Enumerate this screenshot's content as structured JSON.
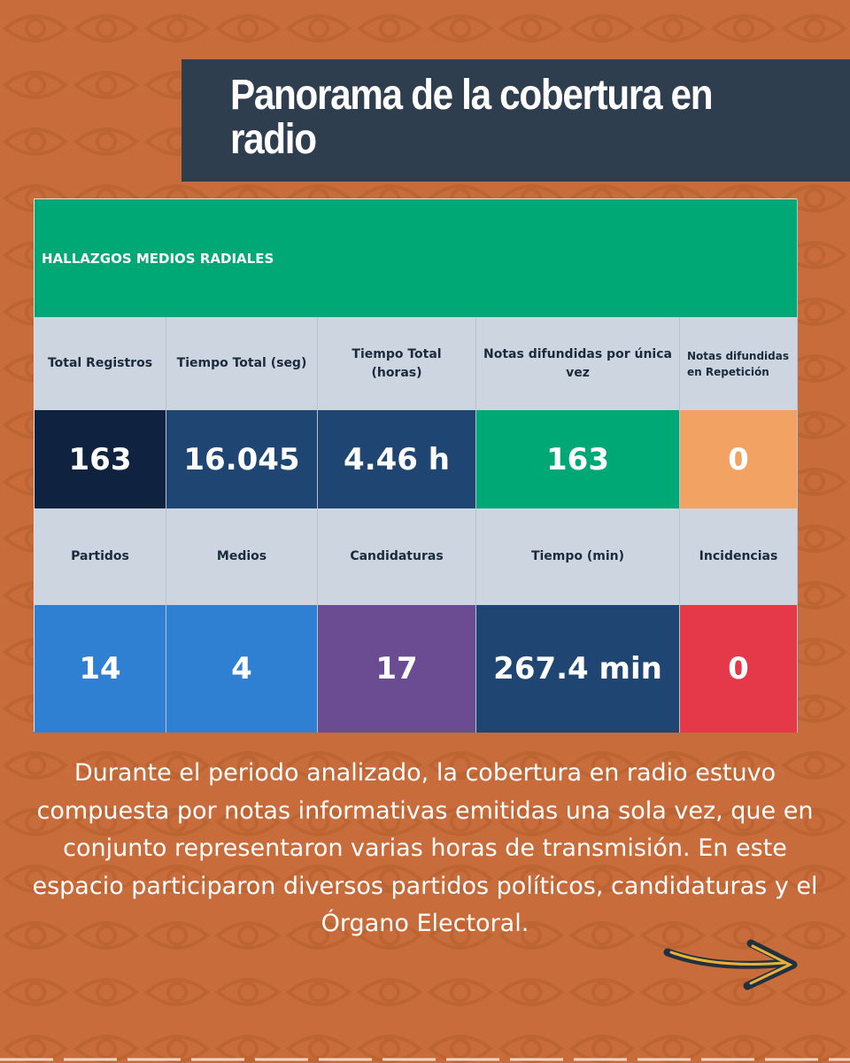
{
  "header": {
    "title": "Panorama de la cobertura en radio"
  },
  "table": {
    "title": "HALLAZGOS MEDIOS RADIALES",
    "rows": [
      [
        "Total Registros",
        "Tiempo Total (seg)",
        "Tiempo Total (horas)",
        "Notas difundidas por única vez",
        "Notas difundidas en Repetición"
      ],
      [
        "163",
        "16.045",
        "4.46 h",
        "163",
        "0"
      ],
      [
        "Partidos",
        "Medios",
        "Candidaturas",
        "Tiempo (min)",
        "Incidencias"
      ],
      [
        "14",
        "4",
        "17",
        "267.4 min",
        "0"
      ]
    ]
  },
  "paragraph": "Durante el periodo analizado, la cobertura en radio estuvo compuesta por notas informativas emitidas una sola vez, que en conjunto representaron varias horas de transmisión. En este espacio participaron diversos partidos políticos, candidaturas y el Órgano Electoral."
}
